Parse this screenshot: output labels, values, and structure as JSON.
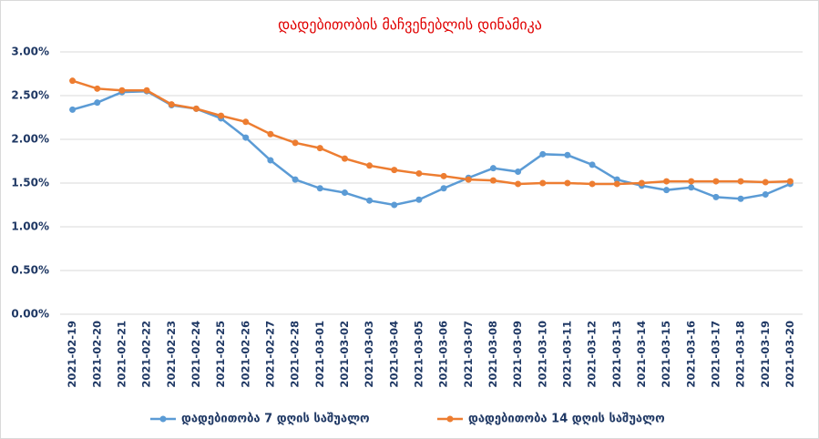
{
  "chart_data": {
    "type": "line",
    "title": "დადებითობის მაჩვენებლის დინამიკა",
    "categories": [
      "2021-02-19",
      "2021-02-20",
      "2021-02-21",
      "2021-02-22",
      "2021-02-23",
      "2021-02-24",
      "2021-02-25",
      "2021-02-26",
      "2021-02-27",
      "2021-02-28",
      "2021-03-01",
      "2021-03-02",
      "2021-03-03",
      "2021-03-04",
      "2021-03-05",
      "2021-03-06",
      "2021-03-07",
      "2021-03-08",
      "2021-03-09",
      "2021-03-10",
      "2021-03-11",
      "2021-03-12",
      "2021-03-13",
      "2021-03-14",
      "2021-03-15",
      "2021-03-16",
      "2021-03-17",
      "2021-03-18",
      "2021-03-19",
      "2021-03-20"
    ],
    "series": [
      {
        "name": "დადებითობა 7 დღის საშუალო",
        "color": "#5b9bd5",
        "values": [
          2.34,
          2.42,
          2.54,
          2.55,
          2.39,
          2.35,
          2.24,
          2.02,
          1.76,
          1.54,
          1.44,
          1.39,
          1.3,
          1.25,
          1.31,
          1.44,
          1.56,
          1.67,
          1.63,
          1.83,
          1.82,
          1.71,
          1.54,
          1.47,
          1.42,
          1.45,
          1.34,
          1.32,
          1.37,
          1.49
        ]
      },
      {
        "name": "დადებითობა 14 დღის საშუალო",
        "color": "#ed7d31",
        "values": [
          2.67,
          2.58,
          2.56,
          2.56,
          2.4,
          2.35,
          2.27,
          2.2,
          2.06,
          1.96,
          1.9,
          1.78,
          1.7,
          1.65,
          1.61,
          1.58,
          1.54,
          1.53,
          1.49,
          1.5,
          1.5,
          1.49,
          1.49,
          1.5,
          1.52,
          1.52,
          1.52,
          1.52,
          1.51,
          1.52
        ]
      }
    ],
    "ylim": [
      0,
      3
    ],
    "yticks": [
      {
        "value": 0,
        "label": "0.00%"
      },
      {
        "value": 0.5,
        "label": "0.50%"
      },
      {
        "value": 1,
        "label": "1.00%"
      },
      {
        "value": 1.5,
        "label": "1.50%"
      },
      {
        "value": 2,
        "label": "2.00%"
      },
      {
        "value": 2.5,
        "label": "2.50%"
      },
      {
        "value": 3,
        "label": "3.00%"
      }
    ],
    "grid": true,
    "legend": "bottom",
    "title_color": "#e00000"
  }
}
